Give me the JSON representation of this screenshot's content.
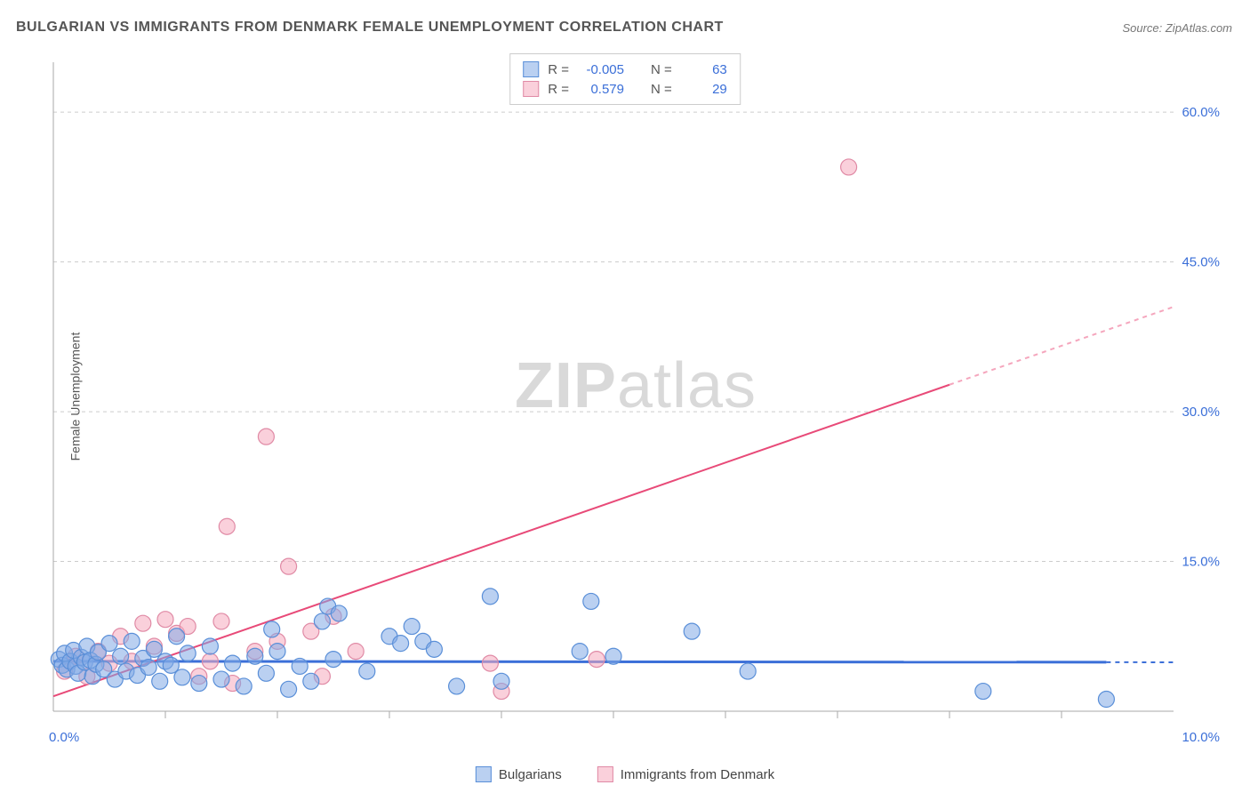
{
  "title": "BULGARIAN VS IMMIGRANTS FROM DENMARK FEMALE UNEMPLOYMENT CORRELATION CHART",
  "source": "Source: ZipAtlas.com",
  "ylabel": "Female Unemployment",
  "watermark_zip": "ZIP",
  "watermark_atlas": "atlas",
  "chart": {
    "type": "scatter",
    "xlim": [
      0,
      10
    ],
    "ylim": [
      0,
      65
    ],
    "x_axis_label_left": "0.0%",
    "x_axis_label_right": "10.0%",
    "y_ticks": [
      15,
      30,
      45,
      60
    ],
    "y_tick_labels": [
      "15.0%",
      "30.0%",
      "45.0%",
      "60.0%"
    ],
    "grid_color": "#cccccc",
    "background_color": "#ffffff",
    "axis_color": "#aaaaaa",
    "tick_label_color": "#3b6fd8",
    "marker_radius": 9,
    "series": [
      {
        "name": "Bulgarians",
        "color_fill": "rgba(130,170,230,0.55)",
        "color_stroke": "#5a8fd8",
        "R": "-0.005",
        "N": "63",
        "trend": {
          "y_at_x0": 5.0,
          "y_at_x10": 4.9,
          "solid_end_x": 9.4
        },
        "points": [
          [
            0.05,
            5.2
          ],
          [
            0.08,
            4.6
          ],
          [
            0.1,
            5.8
          ],
          [
            0.12,
            4.2
          ],
          [
            0.15,
            5.0
          ],
          [
            0.18,
            6.1
          ],
          [
            0.2,
            4.5
          ],
          [
            0.22,
            3.8
          ],
          [
            0.25,
            5.4
          ],
          [
            0.28,
            4.9
          ],
          [
            0.3,
            6.5
          ],
          [
            0.33,
            5.1
          ],
          [
            0.35,
            3.5
          ],
          [
            0.38,
            4.7
          ],
          [
            0.4,
            5.9
          ],
          [
            0.45,
            4.2
          ],
          [
            0.5,
            6.8
          ],
          [
            0.55,
            3.2
          ],
          [
            0.6,
            5.5
          ],
          [
            0.65,
            4.0
          ],
          [
            0.7,
            7.0
          ],
          [
            0.75,
            3.6
          ],
          [
            0.8,
            5.3
          ],
          [
            0.85,
            4.4
          ],
          [
            0.9,
            6.2
          ],
          [
            0.95,
            3.0
          ],
          [
            1.0,
            5.0
          ],
          [
            1.05,
            4.6
          ],
          [
            1.1,
            7.5
          ],
          [
            1.15,
            3.4
          ],
          [
            1.2,
            5.8
          ],
          [
            1.3,
            2.8
          ],
          [
            1.4,
            6.5
          ],
          [
            1.5,
            3.2
          ],
          [
            1.6,
            4.8
          ],
          [
            1.7,
            2.5
          ],
          [
            1.8,
            5.5
          ],
          [
            1.9,
            3.8
          ],
          [
            2.0,
            6.0
          ],
          [
            2.1,
            2.2
          ],
          [
            2.2,
            4.5
          ],
          [
            2.3,
            3.0
          ],
          [
            2.4,
            9.0
          ],
          [
            2.45,
            10.5
          ],
          [
            2.5,
            5.2
          ],
          [
            2.8,
            4.0
          ],
          [
            3.0,
            7.5
          ],
          [
            3.1,
            6.8
          ],
          [
            3.2,
            8.5
          ],
          [
            3.3,
            7.0
          ],
          [
            3.4,
            6.2
          ],
          [
            3.6,
            2.5
          ],
          [
            3.9,
            11.5
          ],
          [
            4.0,
            3.0
          ],
          [
            4.7,
            6.0
          ],
          [
            4.8,
            11.0
          ],
          [
            5.0,
            5.5
          ],
          [
            5.7,
            8.0
          ],
          [
            6.2,
            4.0
          ],
          [
            8.3,
            2.0
          ],
          [
            9.4,
            1.2
          ],
          [
            2.55,
            9.8
          ],
          [
            1.95,
            8.2
          ]
        ]
      },
      {
        "name": "Immigrants from Denmark",
        "color_fill": "rgba(245,170,190,0.55)",
        "color_stroke": "#e08aa5",
        "R": "0.579",
        "N": "29",
        "trend": {
          "y_at_x0": 1.5,
          "y_at_x10": 40.5,
          "solid_end_x": 8.0
        },
        "points": [
          [
            0.1,
            4.0
          ],
          [
            0.2,
            5.5
          ],
          [
            0.3,
            3.5
          ],
          [
            0.4,
            6.0
          ],
          [
            0.5,
            4.8
          ],
          [
            0.6,
            7.5
          ],
          [
            0.7,
            5.0
          ],
          [
            0.8,
            8.8
          ],
          [
            0.9,
            6.5
          ],
          [
            1.0,
            9.2
          ],
          [
            1.1,
            7.8
          ],
          [
            1.2,
            8.5
          ],
          [
            1.3,
            3.5
          ],
          [
            1.4,
            5.0
          ],
          [
            1.5,
            9.0
          ],
          [
            1.55,
            18.5
          ],
          [
            1.6,
            2.8
          ],
          [
            1.8,
            6.0
          ],
          [
            1.9,
            27.5
          ],
          [
            2.0,
            7.0
          ],
          [
            2.1,
            14.5
          ],
          [
            2.3,
            8.0
          ],
          [
            2.4,
            3.5
          ],
          [
            2.5,
            9.5
          ],
          [
            2.7,
            6.0
          ],
          [
            3.9,
            4.8
          ],
          [
            4.0,
            2.0
          ],
          [
            4.85,
            5.2
          ],
          [
            7.1,
            54.5
          ]
        ]
      }
    ]
  },
  "stats_legend": {
    "rows": [
      {
        "swatch": "blue",
        "R_label": "R =",
        "R_val": "-0.005",
        "N_label": "N =",
        "N_val": "63"
      },
      {
        "swatch": "pink",
        "R_label": "R =",
        "R_val": "0.579",
        "N_label": "N =",
        "N_val": "29"
      }
    ]
  },
  "bottom_legend": {
    "items": [
      {
        "swatch": "blue",
        "label": "Bulgarians"
      },
      {
        "swatch": "pink",
        "label": "Immigrants from Denmark"
      }
    ]
  }
}
